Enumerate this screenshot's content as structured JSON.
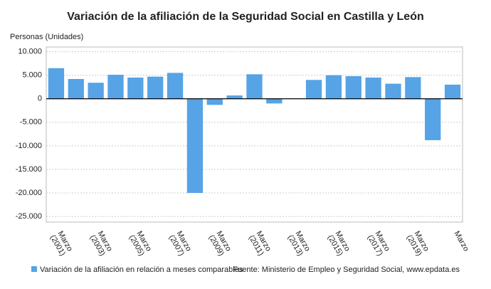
{
  "chart_data": {
    "type": "bar",
    "title": "Variación de la afiliación de la Seguridad Social en Castilla y León",
    "y_label": "Personas (Unidades)",
    "categories": [
      "Marzo (2001)",
      null,
      "Marzo (2003)",
      null,
      "Marzo (2005)",
      null,
      "Marzo (2007)",
      null,
      "Marzo (2009)",
      null,
      "Marzo (2011)",
      null,
      "Marzo (2013)",
      null,
      "Marzo (2015)",
      null,
      "Marzo (2017)",
      null,
      "Marzo (2019)",
      null,
      "Marzo"
    ],
    "series": [
      {
        "name": "Variación de la afiliación en relación a meses comparables",
        "color": "#56a3e6",
        "values": [
          6500,
          4200,
          3400,
          5100,
          4500,
          4700,
          5500,
          -20000,
          -1300,
          700,
          5200,
          -1000,
          0,
          4000,
          5000,
          4800,
          4500,
          3200,
          4600,
          -8800,
          3000
        ]
      }
    ],
    "ylim": [
      -26200,
      11000
    ],
    "yticks": [
      {
        "value": 10000,
        "label": "10.000"
      },
      {
        "value": 5000,
        "label": "5.000"
      },
      0,
      {
        "value": -5000,
        "label": "-5.000"
      },
      {
        "value": -10000,
        "label": "-10.000"
      },
      {
        "value": -15000,
        "label": "-15.000"
      },
      {
        "value": -20000,
        "label": "-20.000"
      },
      {
        "value": -25000,
        "label": "-25.000"
      }
    ],
    "grid": true,
    "source": "Fuente: Ministerio de Empleo y Seguridad Social, www.epdata.es"
  }
}
